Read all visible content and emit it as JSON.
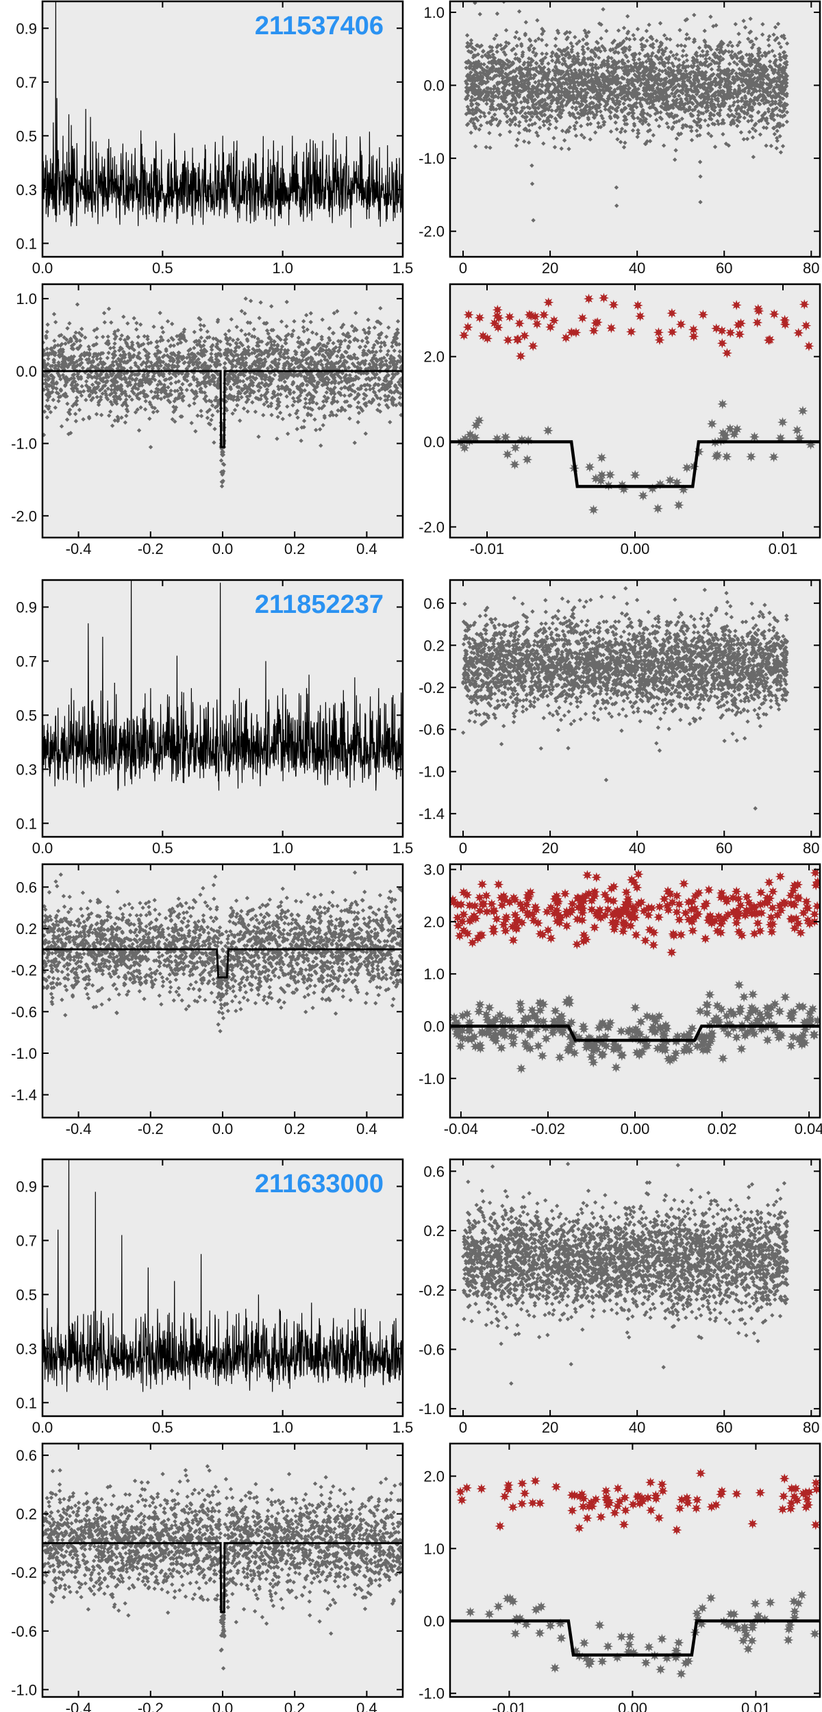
{
  "colors": {
    "panel_bg": "#ebebeb",
    "data_gray": "#6a6a6a",
    "model_black": "#000000",
    "odd_even_red": "#b02525",
    "title_blue": "#2a92f2"
  },
  "chart_data": [
    {
      "id": "p1",
      "type": "line",
      "title": "211537406",
      "xlim": [
        0,
        1.5
      ],
      "ylim": [
        0.05,
        1.0
      ],
      "xticks": [
        0.0,
        0.5,
        1.0,
        1.5
      ],
      "xtick_labels": [
        "0.0",
        "0.5",
        "1.0",
        "1.5"
      ],
      "yticks": [
        0.1,
        0.3,
        0.5,
        0.7,
        0.9
      ],
      "ytick_labels": [
        "0.1",
        "0.3",
        "0.5",
        "0.7",
        "0.9"
      ],
      "series": [
        {
          "kind": "spectrum",
          "color": "#000000",
          "x_range": [
            0.0,
            1.5
          ],
          "baseline": 0.29,
          "noise": 0.055,
          "peaks": [
            [
              0.055,
              1.0
            ],
            [
              0.045,
              0.55
            ],
            [
              0.06,
              0.64
            ],
            [
              0.085,
              0.5
            ],
            [
              0.11,
              0.58
            ],
            [
              0.12,
              0.54
            ],
            [
              0.18,
              0.6
            ],
            [
              0.2,
              0.57
            ],
            [
              0.41,
              0.52
            ],
            [
              0.55,
              0.51
            ],
            [
              0.75,
              0.5
            ],
            [
              1.04,
              0.5
            ],
            [
              1.21,
              0.51
            ]
          ]
        }
      ]
    },
    {
      "id": "p2",
      "type": "scatter",
      "xlim": [
        -3,
        82
      ],
      "ylim": [
        -2.35,
        1.15
      ],
      "xticks": [
        0,
        20,
        40,
        60,
        80
      ],
      "xtick_labels": [
        "0",
        "20",
        "40",
        "60",
        "80"
      ],
      "yticks": [
        1.0,
        0.0,
        -1.0,
        -2.0
      ],
      "ytick_labels": [
        "1.0",
        "0.0",
        "-1.0",
        "-2.0"
      ],
      "series": [
        {
          "kind": "timeseries",
          "color": "#6a6a6a",
          "marker": "diamond",
          "x_range": [
            0,
            74.5
          ],
          "n": 3200,
          "center": 0.0,
          "sigma": 0.32,
          "gaps": [
            [
              0,
              0.6
            ]
          ],
          "dips": [
            [
              16,
              -1.85
            ],
            [
              16,
              -1.35
            ],
            [
              16,
              -1.1
            ],
            [
              35.2,
              -1.4
            ],
            [
              35.2,
              -1.65
            ],
            [
              54.4,
              -1.6
            ],
            [
              54.4,
              -1.25
            ],
            [
              54.4,
              -1.05
            ]
          ]
        }
      ]
    },
    {
      "id": "p3",
      "type": "scatter",
      "xlim": [
        -0.5,
        0.5
      ],
      "ylim": [
        -2.3,
        1.2
      ],
      "xticks": [
        -0.4,
        -0.2,
        0.0,
        0.2,
        0.4
      ],
      "xtick_labels": [
        "-0.4",
        "-0.2",
        "0.0",
        "0.2",
        "0.4"
      ],
      "yticks": [
        1.0,
        0.0,
        -1.0,
        -2.0
      ],
      "ytick_labels": [
        "1.0",
        "0.0",
        "-1.0",
        "-2.0"
      ],
      "series": [
        {
          "kind": "folded",
          "color": "#6a6a6a",
          "marker": "diamond",
          "x_range": [
            -0.5,
            0.5
          ],
          "n": 2400,
          "sigma": 0.32,
          "clip": 1.0,
          "depth": -1.05,
          "half_width": 0.005
        },
        {
          "kind": "model",
          "color": "#000000",
          "x_range": [
            -0.5,
            0.5
          ],
          "depth": -1.05,
          "half_width": 0.005,
          "ingress": 0.0006
        }
      ]
    },
    {
      "id": "p4",
      "type": "scatter",
      "xlim": [
        -0.0125,
        0.0125
      ],
      "ylim": [
        -2.25,
        3.7
      ],
      "xticks": [
        -0.01,
        0.0,
        0.01
      ],
      "xtick_labels": [
        "-0.01",
        "0.00",
        "0.01"
      ],
      "yticks": [
        2.0,
        0.0,
        -2.0
      ],
      "ytick_labels": [
        "2.0",
        "0.0",
        "-2.0"
      ],
      "series": [
        {
          "kind": "zoom",
          "color": "#b02525",
          "marker": "star",
          "x_range": [
            -0.012,
            0.012
          ],
          "n": 70,
          "center": 2.72,
          "sigma": 0.3
        },
        {
          "kind": "zoom",
          "color": "#6a6a6a",
          "marker": "star",
          "x_range": [
            -0.012,
            0.012
          ],
          "n": 62,
          "center": 0.0,
          "sigma": 0.3,
          "depth": -1.05,
          "half_width": 0.0041
        },
        {
          "kind": "model",
          "color": "#000000",
          "x_range": [
            -0.0125,
            0.0125
          ],
          "depth": -1.05,
          "half_width": 0.0041,
          "ingress": 0.0002
        }
      ]
    },
    {
      "id": "p5",
      "type": "line",
      "title": "211852237",
      "xlim": [
        0,
        1.5
      ],
      "ylim": [
        0.05,
        1.0
      ],
      "xticks": [
        0.0,
        0.5,
        1.0,
        1.5
      ],
      "xtick_labels": [
        "0.0",
        "0.5",
        "1.0",
        "1.5"
      ],
      "yticks": [
        0.1,
        0.3,
        0.5,
        0.7,
        0.9
      ],
      "ytick_labels": [
        "0.1",
        "0.3",
        "0.5",
        "0.7",
        "0.9"
      ],
      "series": [
        {
          "kind": "spectrum",
          "color": "#000000",
          "x_range": [
            0.0,
            1.5
          ],
          "baseline": 0.365,
          "noise": 0.06,
          "peaks": [
            [
              0.19,
              0.84
            ],
            [
              0.25,
              0.79
            ],
            [
              0.37,
              1.0
            ],
            [
              0.56,
              0.72
            ],
            [
              0.74,
              0.99
            ],
            [
              0.93,
              0.7
            ],
            [
              1.11,
              0.65
            ],
            [
              0.12,
              0.6
            ],
            [
              0.3,
              0.62
            ],
            [
              0.45,
              0.6
            ],
            [
              0.62,
              0.6
            ],
            [
              0.82,
              0.6
            ],
            [
              1.0,
              0.6
            ],
            [
              1.3,
              0.64
            ],
            [
              1.4,
              0.6
            ]
          ]
        }
      ]
    },
    {
      "id": "p6",
      "type": "scatter",
      "xlim": [
        -3,
        82
      ],
      "ylim": [
        -1.62,
        0.82
      ],
      "xticks": [
        0,
        20,
        40,
        60,
        80
      ],
      "xtick_labels": [
        "0",
        "20",
        "40",
        "60",
        "80"
      ],
      "yticks": [
        0.6,
        0.2,
        -0.2,
        -0.6,
        -1.0,
        -1.4
      ],
      "ytick_labels": [
        "0.6",
        "0.2",
        "-0.2",
        "-0.6",
        "-1.0",
        "-1.4"
      ],
      "series": [
        {
          "kind": "timeseries",
          "color": "#6a6a6a",
          "marker": "diamond",
          "x_range": [
            0,
            74.5
          ],
          "n": 3200,
          "center": 0.0,
          "sigma": 0.22,
          "gaps": [],
          "dips": [
            [
              33,
              -1.08
            ],
            [
              67,
              -1.35
            ],
            [
              45,
              -0.8
            ],
            [
              18,
              -0.78
            ]
          ]
        }
      ]
    },
    {
      "id": "p7",
      "type": "scatter",
      "xlim": [
        -0.5,
        0.5
      ],
      "ylim": [
        -1.62,
        0.82
      ],
      "xticks": [
        -0.4,
        -0.2,
        0.0,
        0.2,
        0.4
      ],
      "xtick_labels": [
        "-0.4",
        "-0.2",
        "0.0",
        "0.2",
        "0.4"
      ],
      "yticks": [
        0.6,
        0.2,
        -0.2,
        -0.6,
        -1.0,
        -1.4
      ],
      "ytick_labels": [
        "0.6",
        "0.2",
        "-0.2",
        "-0.6",
        "-1.0",
        "-1.4"
      ],
      "series": [
        {
          "kind": "folded",
          "color": "#6a6a6a",
          "marker": "diamond",
          "x_range": [
            -0.5,
            0.5
          ],
          "n": 2400,
          "sigma": 0.22,
          "clip": 0.75,
          "depth": -0.27,
          "half_width": 0.014
        },
        {
          "kind": "model",
          "color": "#000000",
          "x_range": [
            -0.5,
            0.5
          ],
          "depth": -0.27,
          "half_width": 0.014,
          "ingress": 0.002
        }
      ]
    },
    {
      "id": "p8",
      "type": "scatter",
      "xlim": [
        -0.0425,
        0.0425
      ],
      "ylim": [
        -1.75,
        3.1
      ],
      "xticks": [
        -0.04,
        -0.02,
        0.0,
        0.02,
        0.04
      ],
      "xtick_labels": [
        "-0.04",
        "-0.02",
        "0.00",
        "0.02",
        "0.04"
      ],
      "yticks": [
        3.0,
        2.0,
        1.0,
        0.0,
        -1.0
      ],
      "ytick_labels": [
        "3.0",
        "2.0",
        "1.0",
        "0.0",
        "-1.0"
      ],
      "series": [
        {
          "kind": "zoom",
          "color": "#b02525",
          "marker": "star",
          "x_range": [
            -0.042,
            0.042
          ],
          "n": 300,
          "center": 2.2,
          "sigma": 0.28
        },
        {
          "kind": "zoom",
          "color": "#6a6a6a",
          "marker": "star",
          "x_range": [
            -0.042,
            0.042
          ],
          "n": 300,
          "center": 0.0,
          "sigma": 0.27,
          "depth": -0.27,
          "half_width": 0.0145
        },
        {
          "kind": "model",
          "color": "#000000",
          "x_range": [
            -0.0425,
            0.0425
          ],
          "depth": -0.27,
          "half_width": 0.0145,
          "ingress": 0.0008
        }
      ]
    },
    {
      "id": "p9",
      "type": "line",
      "title": "211633000",
      "xlim": [
        0,
        1.5
      ],
      "ylim": [
        0.05,
        1.0
      ],
      "xticks": [
        0.0,
        0.5,
        1.0,
        1.5
      ],
      "xtick_labels": [
        "0.0",
        "0.5",
        "1.0",
        "1.5"
      ],
      "yticks": [
        0.1,
        0.3,
        0.5,
        0.7,
        0.9
      ],
      "ytick_labels": [
        "0.1",
        "0.3",
        "0.5",
        "0.7",
        "0.9"
      ],
      "series": [
        {
          "kind": "spectrum",
          "color": "#000000",
          "x_range": [
            0.0,
            1.5
          ],
          "baseline": 0.26,
          "noise": 0.05,
          "peaks": [
            [
              0.11,
              1.0
            ],
            [
              0.22,
              0.88
            ],
            [
              0.33,
              0.72
            ],
            [
              0.065,
              0.74
            ],
            [
              0.44,
              0.6
            ],
            [
              0.55,
              0.55
            ],
            [
              0.66,
              0.65
            ],
            [
              0.9,
              0.5
            ],
            [
              1.12,
              0.47
            ],
            [
              1.3,
              0.45
            ],
            [
              0.02,
              0.45
            ]
          ]
        }
      ]
    },
    {
      "id": "p10",
      "type": "scatter",
      "xlim": [
        -3,
        82
      ],
      "ylim": [
        -1.05,
        0.68
      ],
      "xticks": [
        0,
        20,
        40,
        60,
        80
      ],
      "xtick_labels": [
        "0",
        "20",
        "40",
        "60",
        "80"
      ],
      "yticks": [
        0.6,
        0.2,
        -0.2,
        -0.6,
        -1.0
      ],
      "ytick_labels": [
        "0.6",
        "0.2",
        "-0.2",
        "-0.6",
        "-1.0"
      ],
      "series": [
        {
          "kind": "timeseries",
          "color": "#6a6a6a",
          "marker": "diamond",
          "x_range": [
            0,
            74.5
          ],
          "n": 3200,
          "center": 0.0,
          "sigma": 0.17,
          "gaps": [],
          "dips": [
            [
              11,
              -0.83
            ],
            [
              46,
              -0.72
            ],
            [
              25,
              -0.7
            ],
            [
              12,
              -0.5
            ]
          ]
        }
      ]
    },
    {
      "id": "p11",
      "type": "scatter",
      "xlim": [
        -0.5,
        0.5
      ],
      "ylim": [
        -1.05,
        0.68
      ],
      "xticks": [
        -0.4,
        -0.2,
        0.0,
        0.2,
        0.4
      ],
      "xtick_labels": [
        "-0.4",
        "-0.2",
        "0.0",
        "0.2",
        "0.4"
      ],
      "yticks": [
        0.6,
        0.2,
        -0.2,
        -0.6,
        -1.0
      ],
      "ytick_labels": [
        "0.6",
        "0.2",
        "-0.2",
        "-0.6",
        "-1.0"
      ],
      "series": [
        {
          "kind": "folded",
          "color": "#6a6a6a",
          "marker": "diamond",
          "x_range": [
            -0.5,
            0.5
          ],
          "n": 2400,
          "sigma": 0.17,
          "clip": 0.6,
          "depth": -0.47,
          "half_width": 0.005
        },
        {
          "kind": "model",
          "color": "#000000",
          "x_range": [
            -0.5,
            0.5
          ],
          "depth": -0.47,
          "half_width": 0.005,
          "ingress": 0.0006
        }
      ]
    },
    {
      "id": "p12",
      "type": "scatter",
      "xlim": [
        -0.0148,
        0.0152
      ],
      "ylim": [
        -1.05,
        2.45
      ],
      "xticks": [
        -0.01,
        0.0,
        0.01
      ],
      "xtick_labels": [
        "-0.01",
        "0.00",
        "0.01"
      ],
      "yticks": [
        2.0,
        1.0,
        0.0,
        -1.0
      ],
      "ytick_labels": [
        "2.0",
        "1.0",
        "0.0",
        "-1.0"
      ],
      "series": [
        {
          "kind": "zoom",
          "color": "#b02525",
          "marker": "star",
          "x_range": [
            -0.014,
            0.015
          ],
          "n": 90,
          "center": 1.68,
          "sigma": 0.17
        },
        {
          "kind": "zoom",
          "color": "#6a6a6a",
          "marker": "star",
          "x_range": [
            -0.014,
            0.015
          ],
          "n": 80,
          "center": 0.0,
          "sigma": 0.17,
          "depth": -0.47,
          "half_width": 0.005
        },
        {
          "kind": "model",
          "color": "#000000",
          "x_range": [
            -0.0148,
            0.0152
          ],
          "depth": -0.47,
          "half_width": 0.005,
          "ingress": 0.0002
        }
      ]
    }
  ]
}
